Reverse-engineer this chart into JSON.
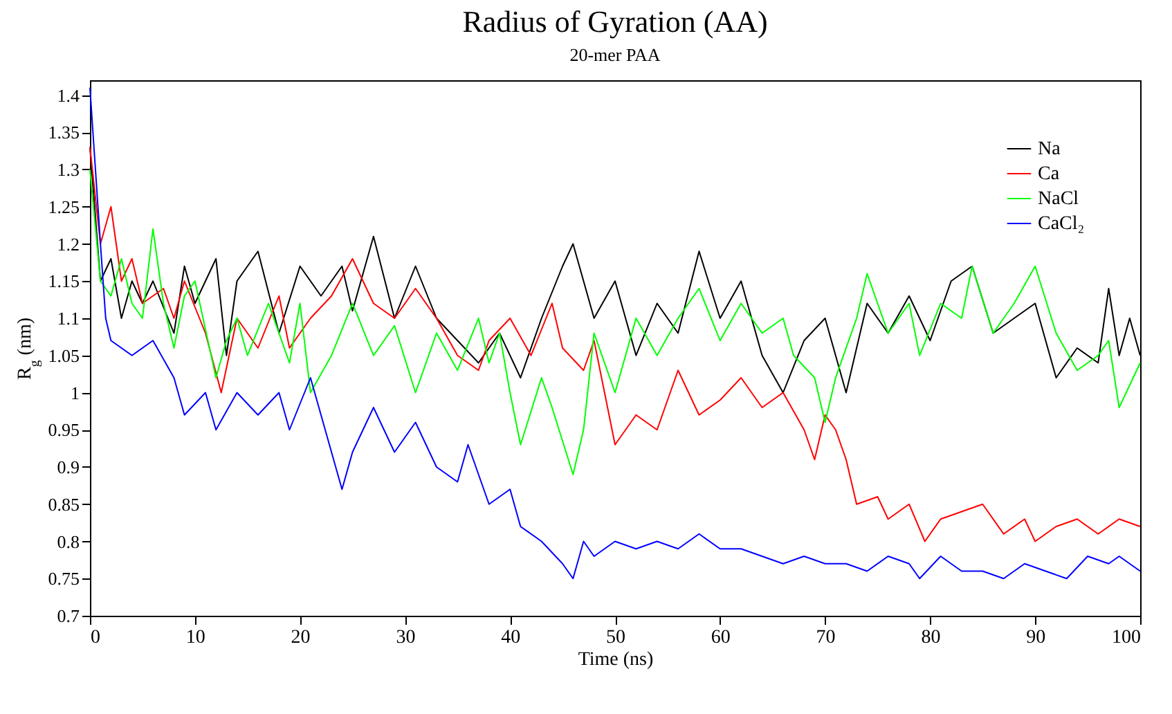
{
  "chart_data": {
    "type": "line",
    "title": "Radius of Gyration  (AA)",
    "subtitle": "20-mer PAA",
    "xlabel": "Time (ns)",
    "ylabel": "R$_{g}$ (nm)",
    "xlim": [
      0,
      100
    ],
    "xticks": [
      0,
      10,
      20,
      30,
      40,
      50,
      60,
      70,
      80,
      90,
      100
    ],
    "ylim": [
      0.7,
      1.42
    ],
    "yticks": [
      0.7,
      0.75,
      0.8,
      0.85,
      0.9,
      0.95,
      1,
      1.05,
      1.1,
      1.15,
      1.2,
      1.25,
      1.3,
      1.35,
      1.4
    ],
    "grid": false,
    "legend": "top right",
    "marker": "none",
    "line_style": "solid",
    "series": [
      {
        "name": "Na",
        "color": "#000000",
        "x": [
          0,
          1,
          2,
          3,
          4,
          5,
          6,
          8,
          9,
          10,
          12,
          13,
          14,
          16,
          18,
          20,
          22,
          24,
          25,
          27,
          29,
          31,
          33,
          35,
          37,
          39,
          41,
          43,
          45,
          46,
          48,
          50,
          52,
          54,
          56,
          58,
          60,
          62,
          64,
          66,
          68,
          70,
          72,
          74,
          76,
          78,
          80,
          82,
          84,
          86,
          88,
          90,
          92,
          94,
          96,
          97,
          98,
          99,
          100
        ],
        "values": [
          1.33,
          1.15,
          1.18,
          1.1,
          1.15,
          1.12,
          1.15,
          1.08,
          1.17,
          1.12,
          1.18,
          1.05,
          1.15,
          1.19,
          1.08,
          1.17,
          1.13,
          1.17,
          1.11,
          1.21,
          1.1,
          1.17,
          1.1,
          1.07,
          1.04,
          1.08,
          1.02,
          1.1,
          1.17,
          1.2,
          1.1,
          1.15,
          1.05,
          1.12,
          1.08,
          1.19,
          1.1,
          1.15,
          1.05,
          1.0,
          1.07,
          1.1,
          1.0,
          1.12,
          1.08,
          1.13,
          1.07,
          1.15,
          1.17,
          1.08,
          1.1,
          1.12,
          1.02,
          1.06,
          1.04,
          1.14,
          1.05,
          1.1,
          1.05
        ]
      },
      {
        "name": "Ca",
        "color": "#ff0000",
        "x": [
          0,
          1,
          2,
          3,
          4,
          5,
          7,
          8,
          9,
          11,
          12.5,
          14,
          16,
          18,
          19,
          21,
          23,
          25,
          27,
          29,
          31,
          33,
          35,
          37,
          38,
          40,
          42,
          44,
          45,
          47,
          48,
          49,
          50,
          52,
          54,
          56,
          58,
          60,
          62,
          64,
          66,
          68,
          69,
          70,
          71,
          72,
          73,
          75,
          76,
          78,
          79.5,
          81,
          83,
          85,
          87,
          89,
          90,
          92,
          94,
          96,
          98,
          100
        ],
        "values": [
          1.33,
          1.2,
          1.25,
          1.15,
          1.18,
          1.12,
          1.14,
          1.1,
          1.15,
          1.08,
          1.0,
          1.1,
          1.06,
          1.13,
          1.06,
          1.1,
          1.13,
          1.18,
          1.12,
          1.1,
          1.14,
          1.1,
          1.05,
          1.03,
          1.07,
          1.1,
          1.05,
          1.12,
          1.06,
          1.03,
          1.07,
          1.0,
          0.93,
          0.97,
          0.95,
          1.03,
          0.97,
          0.99,
          1.02,
          0.98,
          1.0,
          0.95,
          0.91,
          0.97,
          0.95,
          0.91,
          0.85,
          0.86,
          0.83,
          0.85,
          0.8,
          0.83,
          0.84,
          0.85,
          0.81,
          0.83,
          0.8,
          0.82,
          0.83,
          0.81,
          0.83,
          0.82
        ]
      },
      {
        "name": "NaCl",
        "color": "#00ff00",
        "x": [
          0,
          1,
          2,
          3,
          4,
          5,
          6,
          7,
          8,
          9,
          10,
          12,
          13,
          14,
          15,
          17,
          19,
          20,
          21,
          23,
          25,
          27,
          29,
          31,
          33,
          35,
          37,
          38,
          39,
          40,
          41,
          43,
          44,
          46,
          47,
          48,
          50,
          52,
          54,
          56,
          58,
          60,
          62,
          64,
          66,
          67,
          69,
          70,
          71,
          73,
          74,
          76,
          78,
          79,
          81,
          83,
          84,
          86,
          88,
          90,
          92,
          94,
          96,
          97,
          98,
          100
        ],
        "values": [
          1.3,
          1.15,
          1.13,
          1.18,
          1.12,
          1.1,
          1.22,
          1.12,
          1.06,
          1.13,
          1.15,
          1.02,
          1.07,
          1.1,
          1.05,
          1.12,
          1.04,
          1.12,
          1.0,
          1.05,
          1.12,
          1.05,
          1.09,
          1.0,
          1.08,
          1.03,
          1.1,
          1.04,
          1.08,
          1.0,
          0.93,
          1.02,
          0.98,
          0.89,
          0.95,
          1.08,
          1.0,
          1.1,
          1.05,
          1.1,
          1.14,
          1.07,
          1.12,
          1.08,
          1.1,
          1.05,
          1.02,
          0.96,
          1.02,
          1.1,
          1.16,
          1.08,
          1.12,
          1.05,
          1.12,
          1.1,
          1.17,
          1.08,
          1.12,
          1.17,
          1.08,
          1.03,
          1.05,
          1.07,
          0.98,
          1.04
        ]
      },
      {
        "name": "CaCl₂",
        "color": "#0000ff",
        "x": [
          0,
          1,
          1.5,
          2,
          4,
          6,
          8,
          9,
          11,
          12,
          14,
          16,
          18,
          19,
          21,
          23,
          24,
          25,
          27,
          29,
          31,
          33,
          35,
          36,
          38,
          40,
          41,
          43,
          45,
          46,
          47,
          48,
          50,
          52,
          54,
          56,
          58,
          60,
          62,
          64,
          66,
          68,
          70,
          72,
          74,
          76,
          78,
          79,
          81,
          83,
          85,
          87,
          89,
          91,
          93,
          95,
          97,
          98,
          100
        ],
        "values": [
          1.41,
          1.2,
          1.1,
          1.07,
          1.05,
          1.07,
          1.02,
          0.97,
          1.0,
          0.95,
          1.0,
          0.97,
          1.0,
          0.95,
          1.02,
          0.92,
          0.87,
          0.92,
          0.98,
          0.92,
          0.96,
          0.9,
          0.88,
          0.93,
          0.85,
          0.87,
          0.82,
          0.8,
          0.77,
          0.75,
          0.8,
          0.78,
          0.8,
          0.79,
          0.8,
          0.79,
          0.81,
          0.79,
          0.79,
          0.78,
          0.77,
          0.78,
          0.77,
          0.77,
          0.76,
          0.78,
          0.77,
          0.75,
          0.78,
          0.76,
          0.76,
          0.75,
          0.77,
          0.76,
          0.75,
          0.78,
          0.77,
          0.78,
          0.76
        ]
      }
    ]
  }
}
